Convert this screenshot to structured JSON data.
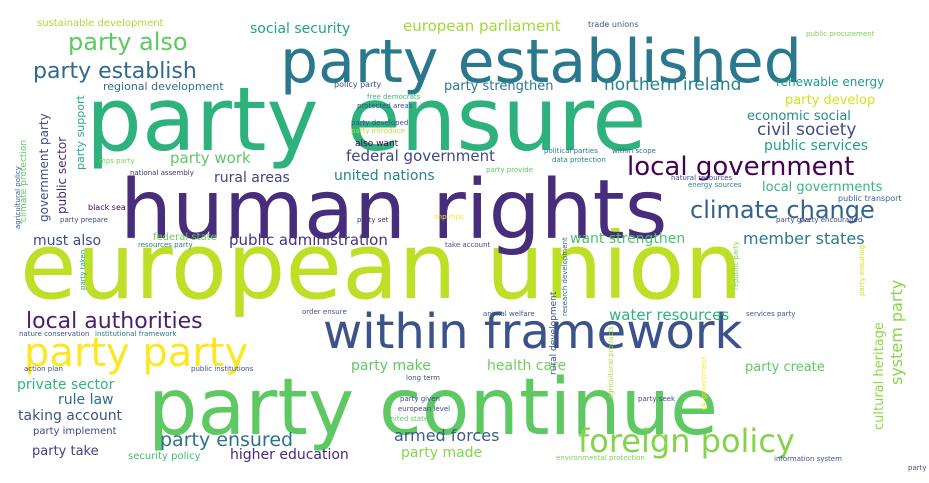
{
  "words": [
    {
      "text": "european union",
      "color": "#bddf26"
    },
    {
      "text": "party ensure",
      "color": "#2db27d"
    },
    {
      "text": "human rights",
      "color": "#472d7b"
    },
    {
      "text": "party continue",
      "color": "#5ec962"
    },
    {
      "text": "party established",
      "color": "#2a788e"
    },
    {
      "text": "within framework",
      "color": "#3b528b"
    },
    {
      "text": "foreign policy",
      "color": "#84d44b"
    },
    {
      "text": "party party",
      "color": "#fde725"
    },
    {
      "text": "local government",
      "color": "#440154"
    },
    {
      "text": "climate change",
      "color": "#33638d"
    },
    {
      "text": "local authorities",
      "color": "#481f70"
    },
    {
      "text": "party also",
      "color": "#5ec962"
    },
    {
      "text": "party establish",
      "color": "#31688e"
    },
    {
      "text": "party ensured",
      "color": "#2c728e"
    },
    {
      "text": "civil society",
      "color": "#3e4989"
    },
    {
      "text": "federal government",
      "color": "#3f4788"
    },
    {
      "text": "northern ireland",
      "color": "#26828e"
    },
    {
      "text": "public administration",
      "color": "#46337e"
    },
    {
      "text": "armed forces",
      "color": "#365d8d"
    },
    {
      "text": "water resources",
      "color": "#2db27d"
    },
    {
      "text": "member states",
      "color": "#2a788e"
    },
    {
      "text": "health care",
      "color": "#6ece58"
    },
    {
      "text": "party make",
      "color": "#5ec962"
    },
    {
      "text": "party work",
      "color": "#5ec962"
    },
    {
      "text": "united nations",
      "color": "#25848e"
    },
    {
      "text": "european parliament",
      "color": "#a0da39"
    },
    {
      "text": "social security",
      "color": "#20a486"
    },
    {
      "text": "public services",
      "color": "#1fa187"
    },
    {
      "text": "local governments",
      "color": "#35b779"
    },
    {
      "text": "economic social",
      "color": "#23898e"
    },
    {
      "text": "party develop",
      "color": "#d2e21b"
    },
    {
      "text": "party strengthen",
      "color": "#2a788e"
    },
    {
      "text": "renewable energy",
      "color": "#1e9b8a"
    },
    {
      "text": "want strengthen",
      "color": "#4ac16d"
    },
    {
      "text": "rural areas",
      "color": "#414487"
    },
    {
      "text": "must also",
      "color": "#3e4a89"
    },
    {
      "text": "private sector",
      "color": "#2fb47c"
    },
    {
      "text": "taking account",
      "color": "#3b528b"
    },
    {
      "text": "rule law",
      "color": "#31688e"
    },
    {
      "text": "party take",
      "color": "#424086"
    },
    {
      "text": "higher education",
      "color": "#482878"
    },
    {
      "text": "party made",
      "color": "#86d549"
    },
    {
      "text": "party create",
      "color": "#5ec962"
    },
    {
      "text": "regional development",
      "color": "#2f6c8e"
    },
    {
      "text": "government party",
      "color": "#3d4d8a"
    },
    {
      "text": "public sector",
      "color": "#472f7d"
    },
    {
      "text": "party support",
      "color": "#27ad81"
    },
    {
      "text": "system party",
      "color": "#86d549"
    },
    {
      "text": "cultural heritage",
      "color": "#8fd744"
    },
    {
      "text": "party implement",
      "color": "#414487"
    },
    {
      "text": "security policy",
      "color": "#3dbc74"
    },
    {
      "text": "sustainable development",
      "color": "#a8db34"
    },
    {
      "text": "climate protection",
      "color": "#5ec962"
    },
    {
      "text": "trade unions",
      "color": "#38588c"
    },
    {
      "text": "public procurement",
      "color": "#7ad151"
    },
    {
      "text": "policy party",
      "color": "#3e4989"
    },
    {
      "text": "free democrats",
      "color": "#38b977"
    },
    {
      "text": "protected areas",
      "color": "#3b528b"
    },
    {
      "text": "party developed",
      "color": "#3b528b"
    },
    {
      "text": "party introduce",
      "color": "#bddf26"
    },
    {
      "text": "also want",
      "color": "#440154"
    },
    {
      "text": "political parties",
      "color": "#2a788e"
    },
    {
      "text": "within scope",
      "color": "#2e6e8e"
    },
    {
      "text": "data protection",
      "color": "#26828e"
    },
    {
      "text": "party provide",
      "color": "#5ec962"
    },
    {
      "text": "natural resources",
      "color": "#3e4989"
    },
    {
      "text": "energy sources",
      "color": "#26828e"
    },
    {
      "text": "public transport",
      "color": "#33638d"
    },
    {
      "text": "mps party",
      "color": "#7ad151"
    },
    {
      "text": "national assembly",
      "color": "#46337e"
    },
    {
      "text": "black sea",
      "color": "#440154"
    },
    {
      "text": "party prepare",
      "color": "#3e4989"
    },
    {
      "text": "party set",
      "color": "#46337e"
    },
    {
      "text": "snp mps",
      "color": "#fde725"
    },
    {
      "text": "federal state",
      "color": "#6ece58"
    },
    {
      "text": "resources party",
      "color": "#2a788e"
    },
    {
      "text": "take account",
      "color": "#3b528b"
    },
    {
      "text": "party give",
      "color": "#3e4989"
    },
    {
      "text": "party encouraged",
      "color": "#3e4989"
    },
    {
      "text": "agricultural policy",
      "color": "#38588c"
    },
    {
      "text": "party taken",
      "color": "#1f9e89"
    },
    {
      "text": "rural development",
      "color": "#3b528b"
    },
    {
      "text": "research development",
      "color": "#31688e"
    },
    {
      "text": "republic party",
      "color": "#7ad151"
    },
    {
      "text": "party ensuring",
      "color": "#d2e21b"
    },
    {
      "text": "nature conservation",
      "color": "#3b528b"
    },
    {
      "text": "institutional framework",
      "color": "#2a788e"
    },
    {
      "text": "order ensure",
      "color": "#3b528b"
    },
    {
      "text": "animal welfare",
      "color": "#3b528b"
    },
    {
      "text": "services party",
      "color": "#3b528b"
    },
    {
      "text": "action plan",
      "color": "#3b528b"
    },
    {
      "text": "public institutions",
      "color": "#3b528b"
    },
    {
      "text": "long term",
      "color": "#3b528b"
    },
    {
      "text": "party given",
      "color": "#3e4989"
    },
    {
      "text": "european level",
      "color": "#3e4989"
    },
    {
      "text": "united states",
      "color": "#5ec962"
    },
    {
      "text": "agricultural products",
      "color": "#a0da39"
    },
    {
      "text": "party seek",
      "color": "#3e4989"
    },
    {
      "text": "uk government",
      "color": "#fde725"
    },
    {
      "text": "environmental protection",
      "color": "#7ad151"
    },
    {
      "text": "information system",
      "color": "#3b528b"
    },
    {
      "text": "party called",
      "color": "#3b528b"
    }
  ]
}
